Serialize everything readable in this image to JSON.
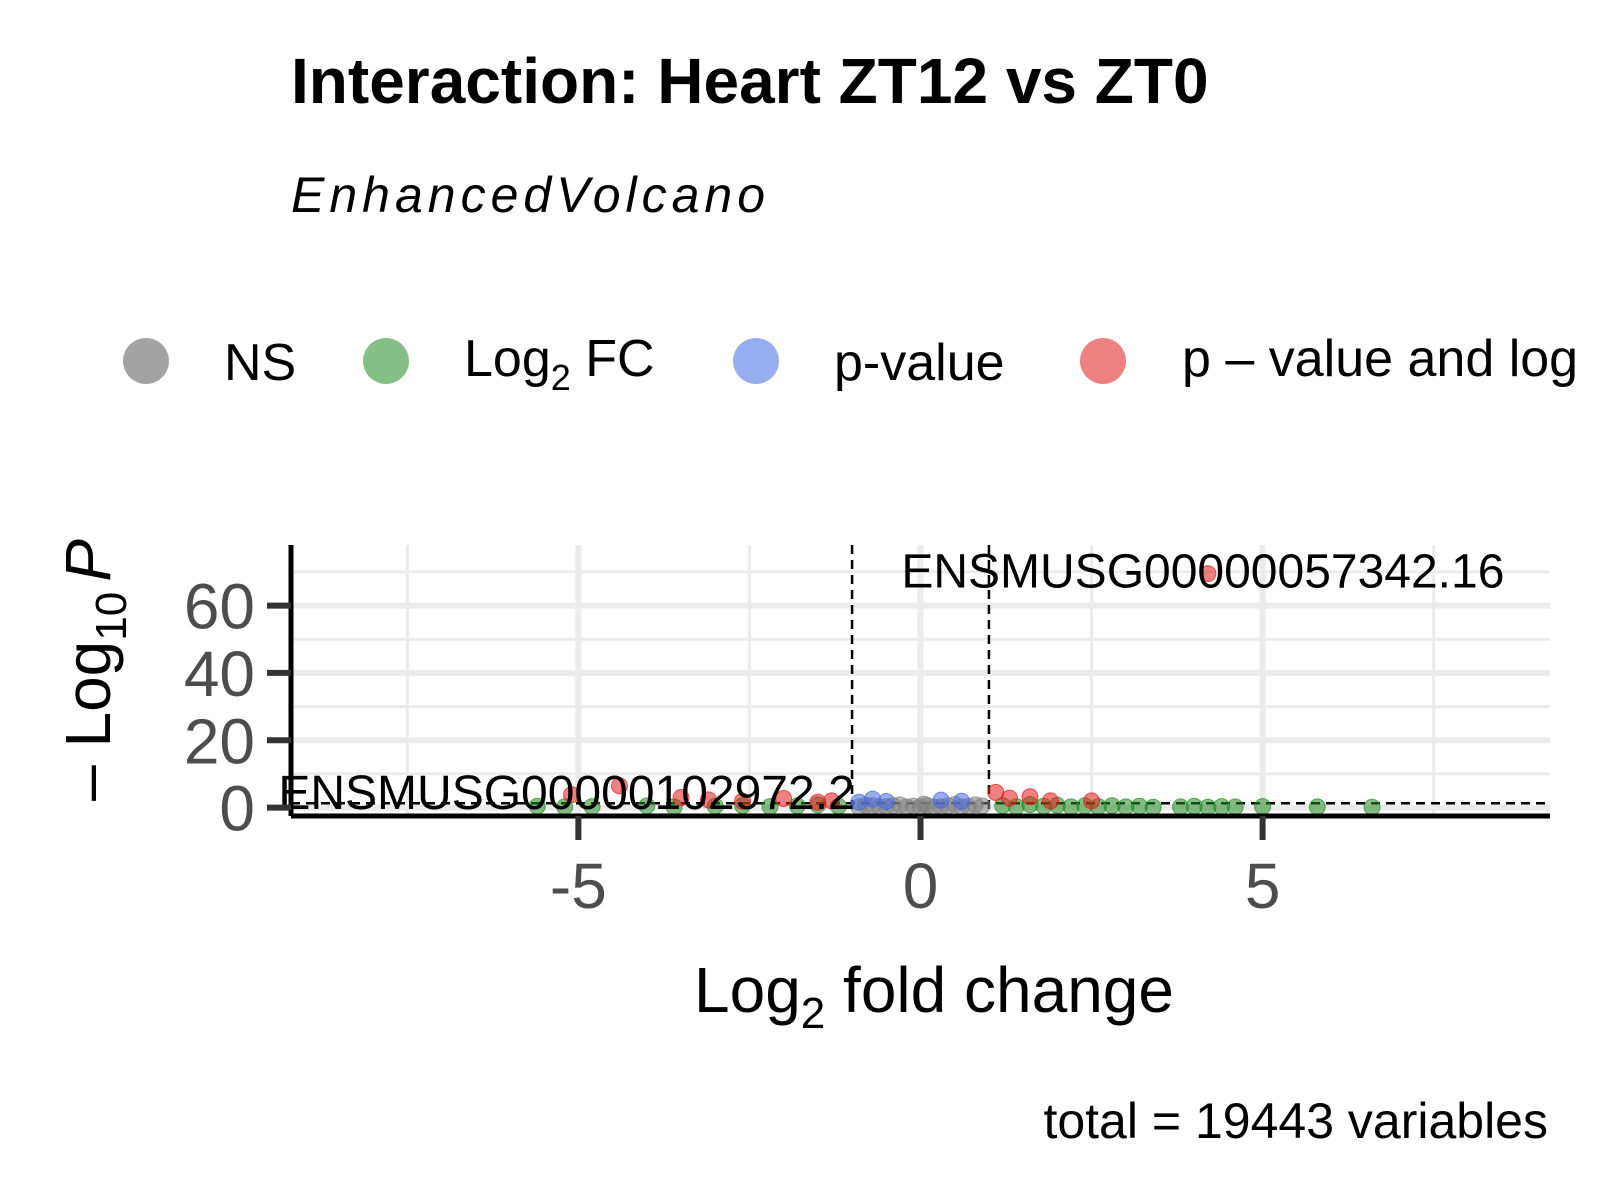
{
  "chart_data": {
    "type": "scatter",
    "title": "Interaction: Heart ZT12 vs ZT0",
    "subtitle": "EnhancedVolcano",
    "xlabel": "Log2 fold change",
    "xlabel_parts": {
      "base": "Log",
      "sub": "2",
      "rest": " fold change"
    },
    "ylabel": "-Log10 P",
    "ylabel_parts": {
      "prefix": "– Log",
      "sub": "10",
      "italic": "P"
    },
    "caption": "total = 19443 variables",
    "xlim": [
      -9.2,
      9.2
    ],
    "ylim": [
      -2.5,
      78
    ],
    "x_ticks": [
      {
        "value": -5,
        "label": "-5"
      },
      {
        "value": 0,
        "label": "0"
      },
      {
        "value": 5,
        "label": "5"
      }
    ],
    "y_ticks": [
      {
        "value": 0,
        "label": "0"
      },
      {
        "value": 20,
        "label": "20"
      },
      {
        "value": 40,
        "label": "40"
      },
      {
        "value": 60,
        "label": "60"
      }
    ],
    "grid": true,
    "fc_cutoffs": [
      -1,
      1
    ],
    "p_cutoff_neglog10": 1.3,
    "legend": {
      "position": "top",
      "entries": [
        {
          "key": "NS",
          "label": "NS",
          "color": "#808080"
        },
        {
          "key": "FC",
          "label": "Log",
          "sub": "2",
          "label_rest": " FC",
          "color": "#228b22"
        },
        {
          "key": "P",
          "label": "p-value",
          "color": "#4169e1"
        },
        {
          "key": "FC_P",
          "label": "p – value and log",
          "color": "#e31a1c"
        }
      ]
    },
    "series": [
      {
        "name": "NS",
        "color": "#808080",
        "points": [
          [
            -0.9,
            0.2
          ],
          [
            -0.7,
            0.5
          ],
          [
            -0.5,
            0.3
          ],
          [
            -0.3,
            0.8
          ],
          [
            -0.1,
            0.4
          ],
          [
            0.1,
            0.6
          ],
          [
            0.3,
            0.2
          ],
          [
            0.5,
            0.9
          ],
          [
            0.7,
            0.3
          ],
          [
            0.9,
            0.5
          ],
          [
            -0.6,
            0.1
          ],
          [
            -0.2,
            0.2
          ],
          [
            0.2,
            0.1
          ],
          [
            0.6,
            0.2
          ],
          [
            0,
            0.3
          ],
          [
            -0.4,
            0.6
          ],
          [
            0.4,
            0.5
          ],
          [
            -0.8,
            0.7
          ],
          [
            0.8,
            0.8
          ],
          [
            0.05,
            1.0
          ]
        ]
      },
      {
        "name": "FC",
        "color": "#228b22",
        "points": [
          [
            -5.6,
            0.4
          ],
          [
            -5.2,
            0.2
          ],
          [
            -4.8,
            0.3
          ],
          [
            -4.0,
            0.5
          ],
          [
            -3.6,
            0.2
          ],
          [
            -3.0,
            0.4
          ],
          [
            -2.6,
            0.6
          ],
          [
            -2.2,
            0.3
          ],
          [
            -1.8,
            0.5
          ],
          [
            -1.5,
            0.8
          ],
          [
            -1.2,
            0.4
          ],
          [
            1.2,
            0.6
          ],
          [
            1.4,
            0.3
          ],
          [
            1.6,
            0.9
          ],
          [
            1.8,
            0.4
          ],
          [
            2.0,
            0.7
          ],
          [
            2.2,
            0.2
          ],
          [
            2.4,
            0.5
          ],
          [
            2.6,
            0.3
          ],
          [
            2.8,
            0.6
          ],
          [
            3.0,
            0.2
          ],
          [
            3.2,
            0.4
          ],
          [
            3.4,
            0.1
          ],
          [
            3.8,
            0.2
          ],
          [
            4.0,
            0.4
          ],
          [
            4.2,
            0.1
          ],
          [
            4.4,
            0.3
          ],
          [
            4.6,
            0.2
          ],
          [
            5.0,
            0.3
          ],
          [
            5.8,
            0.2
          ],
          [
            6.6,
            0.1
          ]
        ]
      },
      {
        "name": "p-value",
        "color": "#4169e1",
        "points": [
          [
            -0.7,
            2.5
          ],
          [
            -0.5,
            1.8
          ],
          [
            0.3,
            2.2
          ],
          [
            -0.9,
            1.6
          ],
          [
            0.6,
            1.9
          ]
        ]
      },
      {
        "name": "p - value and log",
        "color": "#e31a1c",
        "points": [
          [
            -5.1,
            3.8
          ],
          [
            -4.4,
            6.5
          ],
          [
            -3.5,
            3.0
          ],
          [
            -3.1,
            2.3
          ],
          [
            -2.6,
            1.9
          ],
          [
            -2.0,
            2.7
          ],
          [
            -1.5,
            1.6
          ],
          [
            -1.3,
            2.0
          ],
          [
            1.1,
            4.5
          ],
          [
            1.3,
            2.8
          ],
          [
            1.6,
            3.2
          ],
          [
            1.9,
            2.0
          ],
          [
            2.5,
            2.0
          ],
          [
            4.2,
            69.5
          ]
        ]
      }
    ],
    "annotations": [
      {
        "text": "ENSMUSG00000057342.16",
        "x": 4.2,
        "y": 69.5
      },
      {
        "text": "ENSMUSG00000102972.2",
        "x": -5.1,
        "y": 3.8
      }
    ]
  }
}
